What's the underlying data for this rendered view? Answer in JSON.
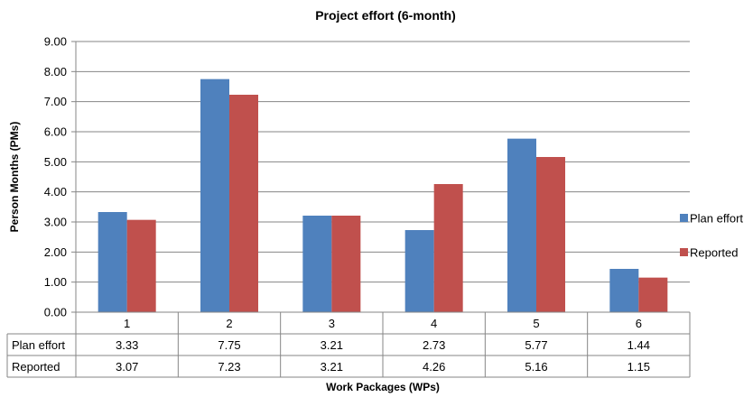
{
  "chart_data": {
    "type": "bar",
    "title": "Project effort (6-month)",
    "xlabel": "Work Packages (WPs)",
    "ylabel": "Person Months (PMs)",
    "categories": [
      "1",
      "2",
      "3",
      "4",
      "5",
      "6"
    ],
    "series": [
      {
        "name": "Plan effort",
        "color": "#4F81BD",
        "values": [
          3.33,
          7.75,
          3.21,
          2.73,
          5.77,
          1.44
        ],
        "labels": [
          "3.33",
          "7.75",
          "3.21",
          "2.73",
          "5.77",
          "1.44"
        ]
      },
      {
        "name": "Reported",
        "color": "#C0504D",
        "values": [
          3.07,
          7.23,
          3.21,
          4.26,
          5.16,
          1.15
        ],
        "labels": [
          "3.07",
          "7.23",
          "3.21",
          "4.26",
          "5.16",
          "1.15"
        ]
      }
    ],
    "ylim": [
      0,
      9
    ],
    "yticks": [
      "0.00",
      "1.00",
      "2.00",
      "3.00",
      "4.00",
      "5.00",
      "6.00",
      "7.00",
      "8.00",
      "9.00"
    ],
    "grid": true,
    "legend": "right",
    "data_table": true
  }
}
